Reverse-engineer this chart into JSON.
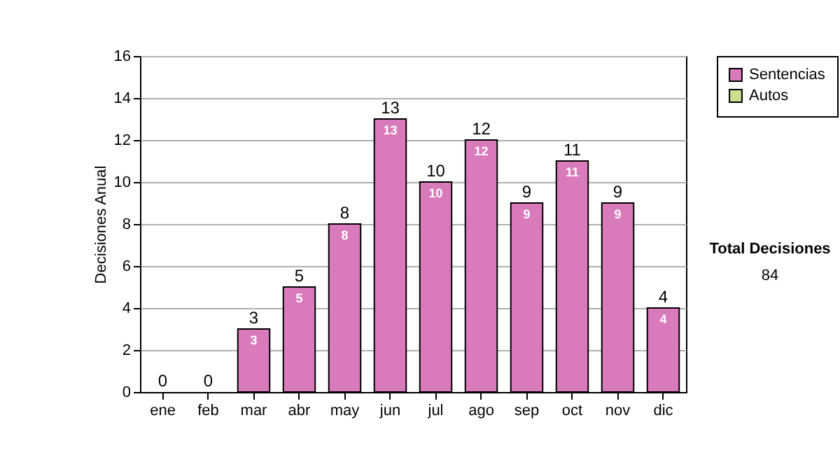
{
  "chart_data": {
    "type": "bar",
    "stacked": true,
    "ylabel": "Decisiones Anual",
    "categories": [
      "ene",
      "feb",
      "mar",
      "abr",
      "may",
      "jun",
      "jul",
      "ago",
      "sep",
      "oct",
      "nov",
      "dic"
    ],
    "series": [
      {
        "name": "Sentencias",
        "color": "#d97abb",
        "values": [
          0,
          0,
          3,
          5,
          8,
          13,
          10,
          12,
          9,
          11,
          9,
          4
        ],
        "value_labels": [
          null,
          null,
          "3",
          "5",
          "8",
          "13",
          "10",
          "12",
          "9",
          "11",
          "9",
          "4"
        ]
      },
      {
        "name": "Autos",
        "color": "#cce08f",
        "values": [
          0,
          0,
          0,
          0,
          0,
          0,
          0,
          0,
          0,
          0,
          0,
          0
        ]
      }
    ],
    "totals": [
      "0",
      "0",
      "3",
      "5",
      "8",
      "13",
      "10",
      "12",
      "9",
      "11",
      "9",
      "4"
    ],
    "ylim": [
      0,
      16
    ],
    "yticks": [
      0,
      2,
      4,
      6,
      8,
      10,
      12,
      14,
      16
    ],
    "grid": "y",
    "legend": "right",
    "annotations": [
      "Total Decisiones",
      "84"
    ]
  }
}
